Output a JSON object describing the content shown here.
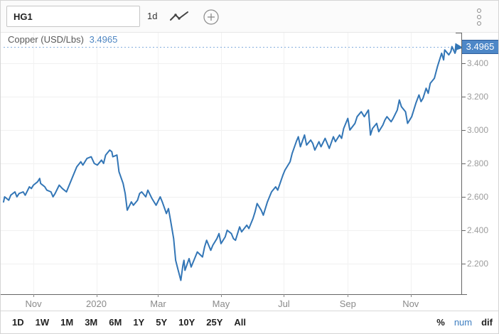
{
  "toolbar": {
    "symbol_value": "HG1",
    "interval_label": "1d",
    "icons": {
      "chart_type": "zigzag-line",
      "add": "circled-plus",
      "menu": "vertical-kebab"
    }
  },
  "legend": {
    "label": "Copper (USD/Lbs)",
    "value": "3.4965"
  },
  "price_badge": "3.4965",
  "colors": {
    "line": "#3376b6",
    "badge_bg": "#4d87c7",
    "badge_border": "#2f5f9c",
    "accent_blue": "#4e86c2",
    "grid": "#f0f0f0",
    "spine": "#666666",
    "dotted_price_line": "#85aede"
  },
  "range_buttons": [
    {
      "id": "1d",
      "label": "1D"
    },
    {
      "id": "1w",
      "label": "1W"
    },
    {
      "id": "1m",
      "label": "1M"
    },
    {
      "id": "3m",
      "label": "3M"
    },
    {
      "id": "6m",
      "label": "6M"
    },
    {
      "id": "1y",
      "label": "1Y"
    },
    {
      "id": "5y",
      "label": "5Y"
    },
    {
      "id": "10y",
      "label": "10Y"
    },
    {
      "id": "25y",
      "label": "25Y"
    },
    {
      "id": "all",
      "label": "All"
    }
  ],
  "mode_buttons": [
    {
      "id": "pct",
      "label": "%",
      "active": false
    },
    {
      "id": "num",
      "label": "num",
      "active": true
    },
    {
      "id": "dif",
      "label": "dif",
      "active": false
    }
  ],
  "chart_data": {
    "type": "line",
    "title": "Copper (USD/Lbs)",
    "current_value": 3.4965,
    "grid": true,
    "x_domain": [
      "2019-10-03",
      "2020-12-16"
    ],
    "ylim": [
      2.05,
      3.58
    ],
    "y_ticks": [
      3.4,
      3.2,
      3.0,
      2.8,
      2.6,
      2.4,
      2.2
    ],
    "y_tick_labels": [
      "3.400",
      "3.200",
      "3.000",
      "2.800",
      "2.600",
      "2.400",
      "2.200"
    ],
    "x_ticks": [
      {
        "label": "Nov",
        "date": "2019-11-01"
      },
      {
        "label": "2020",
        "date": "2020-01-01"
      },
      {
        "label": "Mar",
        "date": "2020-03-01"
      },
      {
        "label": "May",
        "date": "2020-05-01"
      },
      {
        "label": "Jul",
        "date": "2020-07-01"
      },
      {
        "label": "Sep",
        "date": "2020-09-01"
      },
      {
        "label": "Nov",
        "date": "2020-11-01"
      }
    ],
    "series": [
      {
        "name": "HG1 Copper (USD/Lbs)",
        "color": "#3376b6",
        "points": [
          [
            "2019-10-03",
            2.57
          ],
          [
            "2019-10-04",
            2.6
          ],
          [
            "2019-10-08",
            2.58
          ],
          [
            "2019-10-10",
            2.61
          ],
          [
            "2019-10-14",
            2.63
          ],
          [
            "2019-10-16",
            2.6
          ],
          [
            "2019-10-18",
            2.62
          ],
          [
            "2019-10-22",
            2.63
          ],
          [
            "2019-10-24",
            2.61
          ],
          [
            "2019-10-28",
            2.66
          ],
          [
            "2019-10-30",
            2.65
          ],
          [
            "2019-11-01",
            2.67
          ],
          [
            "2019-11-05",
            2.69
          ],
          [
            "2019-11-07",
            2.71
          ],
          [
            "2019-11-08",
            2.68
          ],
          [
            "2019-11-12",
            2.66
          ],
          [
            "2019-11-14",
            2.64
          ],
          [
            "2019-11-18",
            2.63
          ],
          [
            "2019-11-20",
            2.6
          ],
          [
            "2019-11-22",
            2.62
          ],
          [
            "2019-11-26",
            2.67
          ],
          [
            "2019-11-29",
            2.65
          ],
          [
            "2019-12-03",
            2.63
          ],
          [
            "2019-12-05",
            2.66
          ],
          [
            "2019-12-09",
            2.72
          ],
          [
            "2019-12-11",
            2.75
          ],
          [
            "2019-12-13",
            2.78
          ],
          [
            "2019-12-17",
            2.81
          ],
          [
            "2019-12-19",
            2.79
          ],
          [
            "2019-12-23",
            2.83
          ],
          [
            "2019-12-27",
            2.84
          ],
          [
            "2019-12-30",
            2.8
          ],
          [
            "2020-01-02",
            2.79
          ],
          [
            "2020-01-06",
            2.82
          ],
          [
            "2020-01-08",
            2.8
          ],
          [
            "2020-01-10",
            2.85
          ],
          [
            "2020-01-14",
            2.88
          ],
          [
            "2020-01-16",
            2.87
          ],
          [
            "2020-01-17",
            2.84
          ],
          [
            "2020-01-21",
            2.85
          ],
          [
            "2020-01-23",
            2.75
          ],
          [
            "2020-01-27",
            2.68
          ],
          [
            "2020-01-29",
            2.62
          ],
          [
            "2020-01-31",
            2.52
          ],
          [
            "2020-02-04",
            2.57
          ],
          [
            "2020-02-06",
            2.55
          ],
          [
            "2020-02-10",
            2.58
          ],
          [
            "2020-02-12",
            2.62
          ],
          [
            "2020-02-14",
            2.63
          ],
          [
            "2020-02-18",
            2.6
          ],
          [
            "2020-02-20",
            2.64
          ],
          [
            "2020-02-24",
            2.59
          ],
          [
            "2020-02-26",
            2.57
          ],
          [
            "2020-02-28",
            2.55
          ],
          [
            "2020-03-03",
            2.6
          ],
          [
            "2020-03-05",
            2.57
          ],
          [
            "2020-03-09",
            2.5
          ],
          [
            "2020-03-11",
            2.53
          ],
          [
            "2020-03-13",
            2.46
          ],
          [
            "2020-03-16",
            2.35
          ],
          [
            "2020-03-18",
            2.22
          ],
          [
            "2020-03-20",
            2.17
          ],
          [
            "2020-03-23",
            2.1
          ],
          [
            "2020-03-25",
            2.19
          ],
          [
            "2020-03-26",
            2.22
          ],
          [
            "2020-03-27",
            2.16
          ],
          [
            "2020-03-31",
            2.23
          ],
          [
            "2020-04-02",
            2.18
          ],
          [
            "2020-04-06",
            2.24
          ],
          [
            "2020-04-08",
            2.27
          ],
          [
            "2020-04-13",
            2.24
          ],
          [
            "2020-04-15",
            2.3
          ],
          [
            "2020-04-17",
            2.34
          ],
          [
            "2020-04-21",
            2.28
          ],
          [
            "2020-04-23",
            2.31
          ],
          [
            "2020-04-27",
            2.35
          ],
          [
            "2020-04-29",
            2.38
          ],
          [
            "2020-05-01",
            2.32
          ],
          [
            "2020-05-05",
            2.36
          ],
          [
            "2020-05-07",
            2.4
          ],
          [
            "2020-05-11",
            2.38
          ],
          [
            "2020-05-13",
            2.35
          ],
          [
            "2020-05-15",
            2.34
          ],
          [
            "2020-05-19",
            2.42
          ],
          [
            "2020-05-21",
            2.39
          ],
          [
            "2020-05-26",
            2.43
          ],
          [
            "2020-05-28",
            2.41
          ],
          [
            "2020-06-01",
            2.47
          ],
          [
            "2020-06-03",
            2.51
          ],
          [
            "2020-06-05",
            2.56
          ],
          [
            "2020-06-09",
            2.52
          ],
          [
            "2020-06-11",
            2.49
          ],
          [
            "2020-06-15",
            2.57
          ],
          [
            "2020-06-17",
            2.6
          ],
          [
            "2020-06-19",
            2.63
          ],
          [
            "2020-06-23",
            2.66
          ],
          [
            "2020-06-25",
            2.64
          ],
          [
            "2020-06-30",
            2.73
          ],
          [
            "2020-07-02",
            2.76
          ],
          [
            "2020-07-07",
            2.81
          ],
          [
            "2020-07-09",
            2.86
          ],
          [
            "2020-07-13",
            2.93
          ],
          [
            "2020-07-15",
            2.96
          ],
          [
            "2020-07-17",
            2.9
          ],
          [
            "2020-07-21",
            2.97
          ],
          [
            "2020-07-23",
            2.91
          ],
          [
            "2020-07-27",
            2.94
          ],
          [
            "2020-07-29",
            2.92
          ],
          [
            "2020-07-31",
            2.88
          ],
          [
            "2020-08-04",
            2.93
          ],
          [
            "2020-08-06",
            2.9
          ],
          [
            "2020-08-10",
            2.95
          ],
          [
            "2020-08-12",
            2.92
          ],
          [
            "2020-08-14",
            2.89
          ],
          [
            "2020-08-18",
            2.96
          ],
          [
            "2020-08-20",
            2.93
          ],
          [
            "2020-08-24",
            2.97
          ],
          [
            "2020-08-26",
            2.95
          ],
          [
            "2020-08-28",
            3.01
          ],
          [
            "2020-09-01",
            3.07
          ],
          [
            "2020-09-03",
            3.0
          ],
          [
            "2020-09-08",
            3.04
          ],
          [
            "2020-09-10",
            3.08
          ],
          [
            "2020-09-14",
            3.11
          ],
          [
            "2020-09-17",
            3.08
          ],
          [
            "2020-09-21",
            3.12
          ],
          [
            "2020-09-23",
            2.97
          ],
          [
            "2020-09-25",
            3.01
          ],
          [
            "2020-09-29",
            3.04
          ],
          [
            "2020-10-01",
            2.99
          ],
          [
            "2020-10-05",
            3.03
          ],
          [
            "2020-10-07",
            3.06
          ],
          [
            "2020-10-09",
            3.08
          ],
          [
            "2020-10-13",
            3.05
          ],
          [
            "2020-10-15",
            3.07
          ],
          [
            "2020-10-19",
            3.12
          ],
          [
            "2020-10-21",
            3.18
          ],
          [
            "2020-10-23",
            3.14
          ],
          [
            "2020-10-27",
            3.11
          ],
          [
            "2020-10-29",
            3.04
          ],
          [
            "2020-11-02",
            3.08
          ],
          [
            "2020-11-04",
            3.12
          ],
          [
            "2020-11-06",
            3.16
          ],
          [
            "2020-11-09",
            3.21
          ],
          [
            "2020-11-11",
            3.17
          ],
          [
            "2020-11-13",
            3.19
          ],
          [
            "2020-11-16",
            3.25
          ],
          [
            "2020-11-18",
            3.22
          ],
          [
            "2020-11-20",
            3.28
          ],
          [
            "2020-11-24",
            3.31
          ],
          [
            "2020-11-27",
            3.38
          ],
          [
            "2020-12-01",
            3.46
          ],
          [
            "2020-12-03",
            3.42
          ],
          [
            "2020-12-04",
            3.48
          ],
          [
            "2020-12-08",
            3.45
          ],
          [
            "2020-12-10",
            3.47
          ],
          [
            "2020-12-11",
            3.5
          ],
          [
            "2020-12-14",
            3.46
          ],
          [
            "2020-12-16",
            3.4965
          ]
        ]
      }
    ]
  }
}
